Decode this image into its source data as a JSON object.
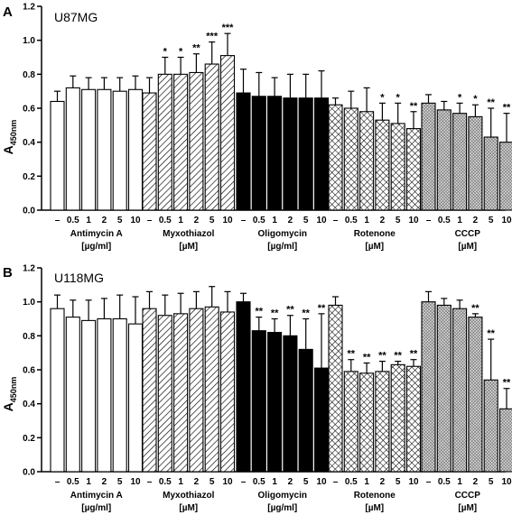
{
  "chart_data": [
    {
      "type": "bar",
      "panel": "A",
      "title": "U87MG",
      "ylabel": "A",
      "ylabel_sub": "450nm",
      "ylim": [
        0,
        1.2
      ],
      "yticks": [
        "0.0",
        "0.2",
        "0.4",
        "0.6",
        "0.8",
        "1.0",
        "1.2"
      ],
      "dose_labels": [
        "–",
        "0.5",
        "1",
        "2",
        "5",
        "10"
      ],
      "groups": [
        {
          "name": "Antimycin A",
          "unit": "[µg/ml]",
          "pattern": "white",
          "values": [
            0.64,
            0.72,
            0.71,
            0.71,
            0.7,
            0.71
          ],
          "errors": [
            0.06,
            0.07,
            0.07,
            0.07,
            0.08,
            0.08
          ],
          "stars": [
            "",
            "",
            "",
            "",
            "",
            ""
          ]
        },
        {
          "name": "Myxothiazol",
          "unit": "[µM]",
          "pattern": "hatch",
          "values": [
            0.69,
            0.8,
            0.8,
            0.81,
            0.86,
            0.91
          ],
          "errors": [
            0.09,
            0.1,
            0.1,
            0.11,
            0.13,
            0.13
          ],
          "stars": [
            "",
            "*",
            "*",
            "**",
            "***",
            "***"
          ]
        },
        {
          "name": "Oligomycin",
          "unit": "[µg/ml]",
          "pattern": "black",
          "values": [
            0.69,
            0.67,
            0.67,
            0.66,
            0.66,
            0.66
          ],
          "errors": [
            0.14,
            0.14,
            0.11,
            0.14,
            0.14,
            0.16
          ],
          "stars": [
            "",
            "",
            "",
            "",
            "",
            ""
          ]
        },
        {
          "name": "Rotenone",
          "unit": "[µM]",
          "pattern": "cross",
          "values": [
            0.62,
            0.6,
            0.58,
            0.53,
            0.51,
            0.48
          ],
          "errors": [
            0.04,
            0.1,
            0.14,
            0.1,
            0.12,
            0.1
          ],
          "stars": [
            "",
            "",
            "",
            "*",
            "*",
            "**"
          ]
        },
        {
          "name": "CCCP",
          "unit": "[µM]",
          "pattern": "dense",
          "values": [
            0.63,
            0.59,
            0.57,
            0.55,
            0.43,
            0.4
          ],
          "errors": [
            0.05,
            0.05,
            0.06,
            0.07,
            0.17,
            0.17
          ],
          "stars": [
            "",
            "",
            "*",
            "*",
            "**",
            "**"
          ]
        }
      ]
    },
    {
      "type": "bar",
      "panel": "B",
      "title": "U118MG",
      "ylabel": "A",
      "ylabel_sub": "450nm",
      "ylim": [
        0,
        1.2
      ],
      "yticks": [
        "0.0",
        "0.2",
        "0.4",
        "0.6",
        "0.8",
        "1.0",
        "1.2"
      ],
      "dose_labels": [
        "–",
        "0.5",
        "1",
        "2",
        "5",
        "10"
      ],
      "groups": [
        {
          "name": "Antimycin A",
          "unit": "[µg/ml]",
          "pattern": "white",
          "values": [
            0.96,
            0.91,
            0.89,
            0.9,
            0.9,
            0.87
          ],
          "errors": [
            0.08,
            0.1,
            0.12,
            0.12,
            0.14,
            0.16
          ],
          "stars": [
            "",
            "",
            "",
            "",
            "",
            ""
          ]
        },
        {
          "name": "Myxothiazol",
          "unit": "[µM]",
          "pattern": "hatch",
          "values": [
            0.96,
            0.92,
            0.93,
            0.96,
            0.97,
            0.94
          ],
          "errors": [
            0.1,
            0.12,
            0.12,
            0.1,
            0.12,
            0.12
          ],
          "stars": [
            "",
            "",
            "",
            "",
            "",
            ""
          ]
        },
        {
          "name": "Oligomycin",
          "unit": "[µg/ml]",
          "pattern": "black",
          "values": [
            1.0,
            0.83,
            0.82,
            0.8,
            0.72,
            0.61
          ],
          "errors": [
            0.05,
            0.08,
            0.08,
            0.12,
            0.18,
            0.32
          ],
          "stars": [
            "",
            "**",
            "**",
            "**",
            "**",
            "**"
          ]
        },
        {
          "name": "Rotenone",
          "unit": "[µM]",
          "pattern": "cross",
          "values": [
            0.98,
            0.59,
            0.58,
            0.59,
            0.63,
            0.62
          ],
          "errors": [
            0.05,
            0.07,
            0.06,
            0.06,
            0.02,
            0.04
          ],
          "stars": [
            "",
            "**",
            "**",
            "**",
            "**",
            "**"
          ]
        },
        {
          "name": "CCCP",
          "unit": "[µM]",
          "pattern": "dense",
          "values": [
            1.0,
            0.98,
            0.96,
            0.91,
            0.54,
            0.37
          ],
          "errors": [
            0.06,
            0.04,
            0.05,
            0.02,
            0.24,
            0.12
          ],
          "stars": [
            "",
            "",
            "",
            "**",
            "**",
            "**"
          ]
        }
      ]
    }
  ]
}
